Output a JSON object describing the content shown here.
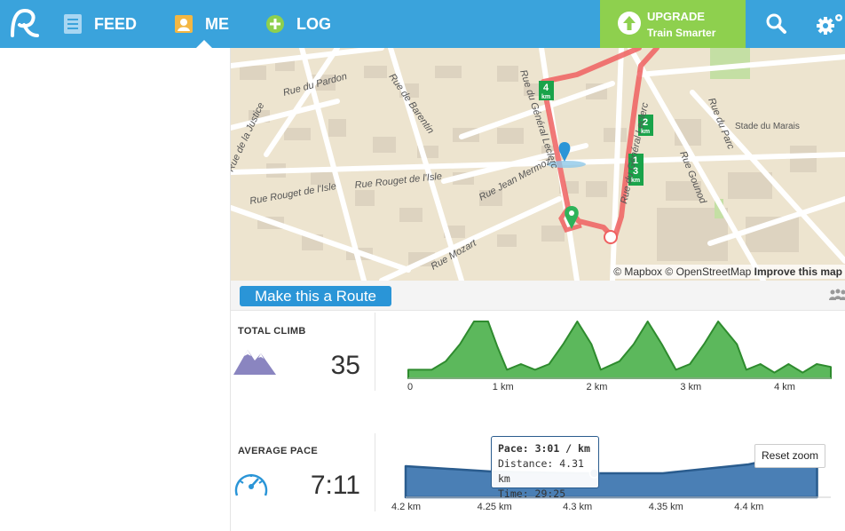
{
  "nav": {
    "feed_label": "FEED",
    "me_label": "ME",
    "log_label": "LOG",
    "upgrade_title": "UPGRADE",
    "upgrade_subtitle": "Train Smarter"
  },
  "map": {
    "attribution_mapbox": "© Mapbox",
    "attribution_osm": "© OpenStreetMap",
    "attribution_improve": "Improve this map",
    "street_labels": [
      "Rue du Pardon",
      "Rue de Barentin",
      "Rue de la Justice",
      "Rue Rouget de l'Isle",
      "Rue Rouget de l'Isle",
      "Rue Jean Mermoz",
      "Rue Mozart",
      "Rue du Général Leclerc",
      "Rue du Général Leclerc",
      "Rue du Parc",
      "Rue Gounod",
      "Stade du Marais"
    ],
    "km_markers": [
      "4",
      "2",
      "1",
      "3"
    ],
    "km_unit": "km"
  },
  "route": {
    "button_label": "Make this a Route"
  },
  "stats": {
    "climb_label": "TOTAL CLIMB",
    "climb_value": "35",
    "pace_label": "AVERAGE PACE",
    "pace_value": "7:11"
  },
  "elevation_axis": [
    "0",
    "1 km",
    "2 km",
    "3 km",
    "4 km"
  ],
  "pace_axis": [
    "4.2 km",
    "4.25 km",
    "4.3 km",
    "4.35 km",
    "4.4 km"
  ],
  "tooltip": {
    "pace_label": "Pace:",
    "pace_value": "3:01 / km",
    "distance_line": "Distance: 4.31 km",
    "time_line": "Time: 29:25"
  },
  "reset_zoom": "Reset zoom",
  "colors": {
    "brand_blue": "#3aa3dc",
    "upgrade_green": "#8ed04e",
    "elevation_green": "#5cb85c",
    "pace_blue": "#3f73aa",
    "route_red": "#ef5a5a"
  },
  "chart_data": [
    {
      "type": "area",
      "title": "",
      "xlabel": "",
      "ylabel": "",
      "x_unit": "km",
      "x": [
        0,
        0.25,
        0.4,
        0.55,
        0.7,
        0.85,
        0.95,
        1.05,
        1.2,
        1.35,
        1.5,
        1.65,
        1.8,
        1.95,
        2.05,
        2.25,
        2.4,
        2.55,
        2.7,
        2.85,
        3.0,
        3.15,
        3.3,
        3.5,
        3.6,
        3.75,
        3.9,
        4.05,
        4.2,
        4.35,
        4.5
      ],
      "values": [
        3,
        3,
        6,
        12,
        20,
        20,
        11,
        3,
        5,
        3,
        5,
        12,
        20,
        12,
        3,
        6,
        12,
        20,
        12,
        3,
        5,
        12,
        20,
        12,
        3,
        5,
        2,
        5,
        2,
        5,
        4
      ],
      "xticks": [
        "0",
        "1 km",
        "2 km",
        "3 km",
        "4 km"
      ],
      "grid": false
    },
    {
      "type": "area",
      "title": "",
      "xlabel": "",
      "ylabel": "",
      "x_unit": "km",
      "x": [
        4.2,
        4.25,
        4.3,
        4.35,
        4.4,
        4.44
      ],
      "values": [
        3.05,
        3.02,
        3.01,
        3.01,
        3.06,
        3.14
      ],
      "xticks": [
        "4.2 km",
        "4.25 km",
        "4.3 km",
        "4.35 km",
        "4.4 km"
      ],
      "highlight": {
        "x": 4.31,
        "pace": "3:01 / km",
        "time": "29:25"
      },
      "grid": false
    }
  ]
}
